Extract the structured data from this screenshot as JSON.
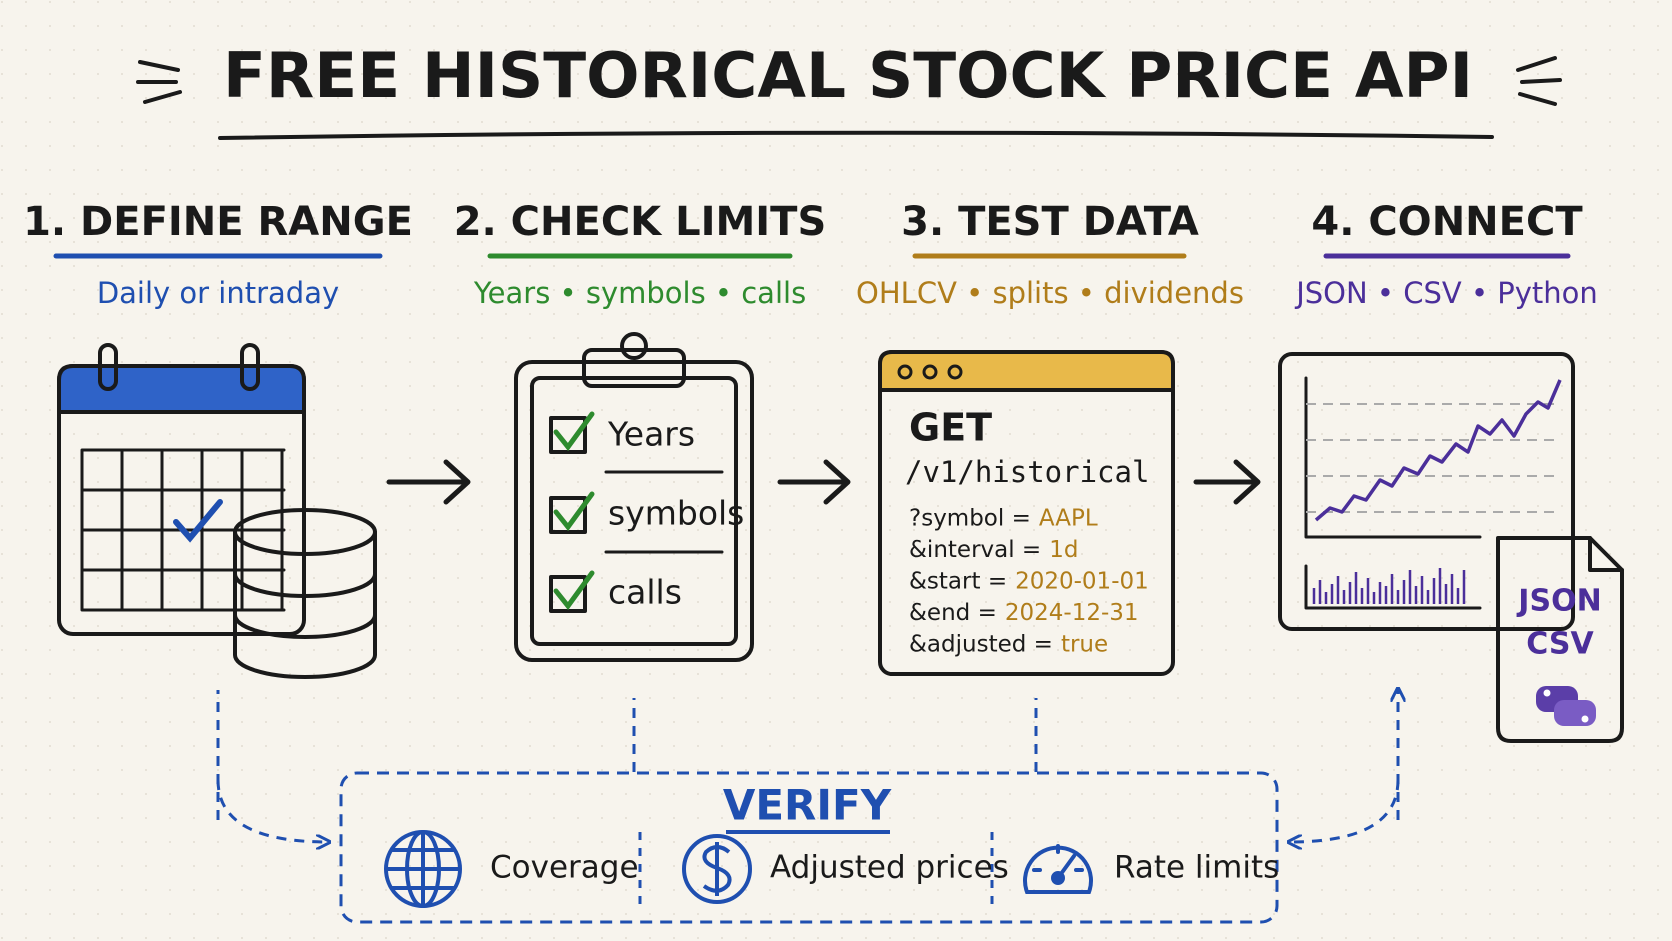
{
  "header": {
    "title": "FREE HISTORICAL STOCK PRICE API"
  },
  "steps": [
    {
      "heading": "1. DEFINE RANGE",
      "subtitle": "Daily or intraday"
    },
    {
      "heading": "2. CHECK LIMITS",
      "subtitle": "Years • symbols • calls",
      "checklist": [
        "Years",
        "symbols",
        "calls"
      ]
    },
    {
      "heading": "3. TEST DATA",
      "subtitle": "OHLCV • splits • dividends",
      "request": {
        "method": "GET",
        "path": "/v1/historical",
        "params": [
          {
            "key": "?symbol =",
            "value": "AAPL"
          },
          {
            "key": "&interval =",
            "value": "1d"
          },
          {
            "key": "&start =",
            "value": "2020-01-01"
          },
          {
            "key": "&end =",
            "value": "2024-12-31"
          },
          {
            "key": "&adjusted =",
            "value": "true"
          }
        ]
      }
    },
    {
      "heading": "4. CONNECT",
      "subtitle": "JSON • CSV • Python",
      "formats": [
        "JSON",
        "CSV"
      ]
    }
  ],
  "verify": {
    "title": "VERIFY",
    "items": [
      "Coverage",
      "Adjusted prices",
      "Rate limits"
    ]
  }
}
